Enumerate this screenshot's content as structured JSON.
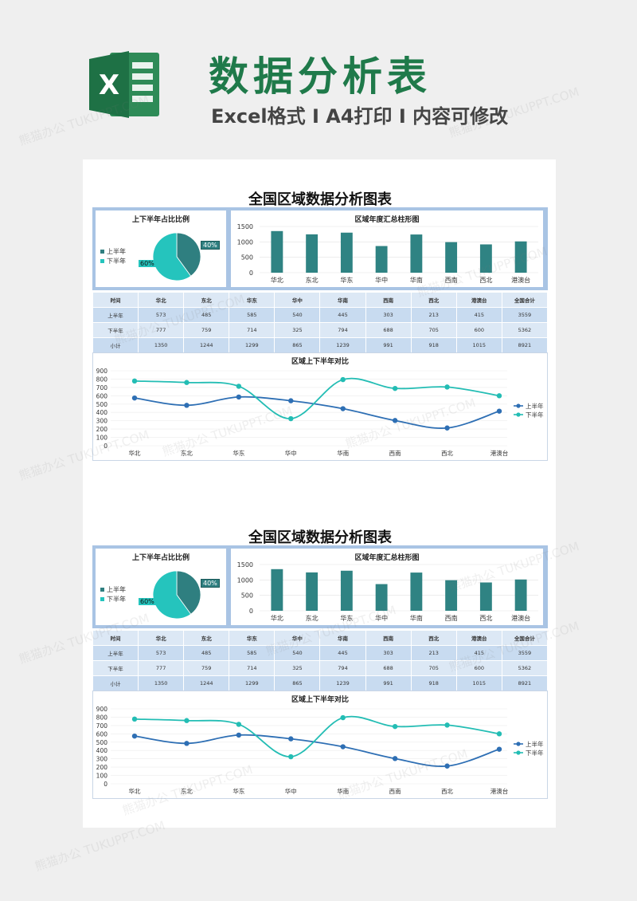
{
  "header": {
    "logo_letter": "X",
    "title": "数据分析表",
    "subtitle": "Excel格式 I A4打印 I 内容可修改"
  },
  "watermark": "熊猫办公 TUKUPPT.COM",
  "sheet": {
    "title": "全国区域数据分析图表",
    "pie": {
      "title": "上下半年占比比例",
      "legend": [
        "上半年",
        "下半年"
      ],
      "labels": [
        "40%",
        "60%"
      ],
      "colors": [
        "#2f7f80",
        "#25c4bd"
      ]
    },
    "bar": {
      "title": "区域年度汇总柱形图",
      "color": "#2f8383"
    },
    "line": {
      "title": "区域上下半年对比",
      "legend": [
        "上半年",
        "下半年"
      ],
      "colors": [
        "#2e6fb4",
        "#23bdb4"
      ]
    },
    "table": {
      "headers": [
        "时间",
        "华北",
        "东北",
        "华东",
        "华中",
        "华南",
        "西南",
        "西北",
        "港澳台",
        "全国合计"
      ],
      "rows": [
        [
          "上半年",
          "573",
          "485",
          "585",
          "540",
          "445",
          "303",
          "213",
          "415",
          "3559"
        ],
        [
          "下半年",
          "777",
          "759",
          "714",
          "325",
          "794",
          "688",
          "705",
          "600",
          "5362"
        ],
        [
          "小计",
          "1350",
          "1244",
          "1299",
          "865",
          "1239",
          "991",
          "918",
          "1015",
          "8921"
        ]
      ]
    }
  },
  "chart_data": [
    {
      "type": "pie",
      "title": "上下半年占比比例",
      "categories": [
        "上半年",
        "下半年"
      ],
      "values": [
        40,
        60
      ]
    },
    {
      "type": "bar",
      "title": "区域年度汇总柱形图",
      "categories": [
        "华北",
        "东北",
        "华东",
        "华中",
        "华南",
        "西南",
        "西北",
        "港澳台"
      ],
      "values": [
        1350,
        1244,
        1299,
        865,
        1239,
        991,
        918,
        1015
      ],
      "ylim": [
        0,
        1500
      ],
      "yticks": [
        0,
        500,
        1000,
        1500
      ],
      "grid": true
    },
    {
      "type": "line",
      "title": "区域上下半年对比",
      "categories": [
        "华北",
        "东北",
        "华东",
        "华中",
        "华南",
        "西南",
        "西北",
        "港澳台"
      ],
      "series": [
        {
          "name": "上半年",
          "values": [
            573,
            485,
            585,
            540,
            445,
            303,
            213,
            415
          ]
        },
        {
          "name": "下半年",
          "values": [
            777,
            759,
            714,
            325,
            794,
            688,
            705,
            600
          ]
        }
      ],
      "ylim": [
        0,
        900
      ],
      "yticks": [
        0,
        100,
        200,
        300,
        400,
        500,
        600,
        700,
        800,
        900
      ],
      "legend": "right",
      "grid": true
    }
  ]
}
